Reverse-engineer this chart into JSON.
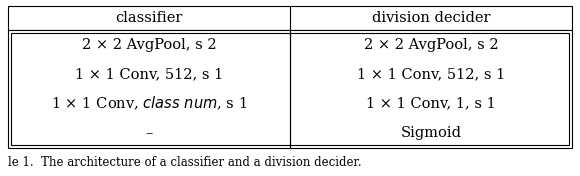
{
  "col_headers": [
    "classifier",
    "division decider"
  ],
  "rows": [
    [
      "2 × 2 AvgPool, s 2",
      "2 × 2 AvgPool, s 2"
    ],
    [
      "1 × 1 Conv, 512, s 1",
      "1 × 1 Conv, 512, s 1"
    ],
    [
      "1 × 1 Conv, {italic}class num{/italic}, s 1",
      "1 × 1 Conv, 1, s 1"
    ],
    [
      "–",
      "Sigmoid"
    ]
  ],
  "font_size": 10.5,
  "header_font_size": 10.5,
  "bg_color": "#ffffff",
  "line_color": "#000000",
  "text_color": "#000000",
  "caption": "le 1.  The architecture of a classifier and a division decider."
}
